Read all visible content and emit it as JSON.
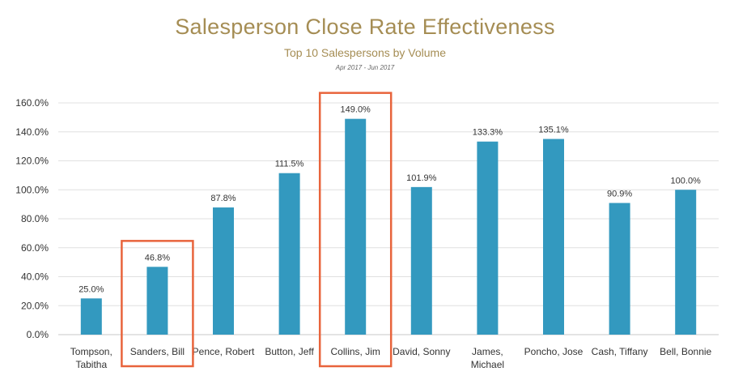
{
  "chart_data": {
    "type": "bar",
    "title": "Salesperson Close Rate Effectiveness",
    "subtitle": "Top 10 Salespersons by Volume",
    "date_range": "Apr 2017 - Jun 2017",
    "categories": [
      [
        "Tompson,",
        "Tabitha"
      ],
      [
        "Sanders, Bill"
      ],
      [
        "Pence, Robert"
      ],
      [
        "Button, Jeff"
      ],
      [
        "Collins, Jim"
      ],
      [
        "David, Sonny"
      ],
      [
        "James,",
        "Michael"
      ],
      [
        "Poncho, Jose"
      ],
      [
        "Cash, Tiffany"
      ],
      [
        "Bell, Bonnie"
      ]
    ],
    "values": [
      25.0,
      46.8,
      87.8,
      111.5,
      149.0,
      101.9,
      133.3,
      135.1,
      90.9,
      100.0
    ],
    "data_labels": [
      "25.0%",
      "46.8%",
      "87.8%",
      "111.5%",
      "149.0%",
      "101.9%",
      "133.3%",
      "135.1%",
      "90.9%",
      "100.0%"
    ],
    "y_ticks": [
      0,
      20,
      40,
      60,
      80,
      100,
      120,
      140,
      160
    ],
    "y_tick_labels": [
      "0.0%",
      "20.0%",
      "40.0%",
      "60.0%",
      "80.0%",
      "100.0%",
      "120.0%",
      "140.0%",
      "160.0%"
    ],
    "ylim": [
      0,
      160
    ],
    "grid": true,
    "highlighted_indices": [
      1,
      4
    ],
    "colors": {
      "bar": "#3399bf",
      "title": "#a58d54",
      "highlight_box": "#e8643c",
      "grid": "#e0e0e0",
      "axis_text": "#333333"
    }
  }
}
